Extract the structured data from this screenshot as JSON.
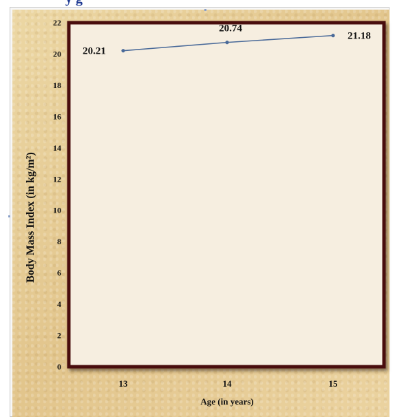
{
  "page": {
    "partial_title": "y g"
  },
  "chart_data": {
    "type": "line",
    "x": [
      13,
      14,
      15
    ],
    "categories": [
      "13",
      "14",
      "15"
    ],
    "values": [
      20.21,
      20.74,
      21.18
    ],
    "data_labels": [
      "20.21",
      "20.74",
      "21.18"
    ],
    "xlabel": "Age (in years)",
    "ylabel": "Body Mass Index (in kg/m²)",
    "ylim": [
      0,
      22
    ],
    "yticks": [
      0,
      2,
      4,
      6,
      8,
      10,
      12,
      14,
      16,
      18,
      20,
      22
    ],
    "grid": false,
    "colors": {
      "line": "#4a6a99",
      "plot_bg": "#f6eee0",
      "plot_border": "#4a0f10",
      "text": "#111111"
    }
  }
}
